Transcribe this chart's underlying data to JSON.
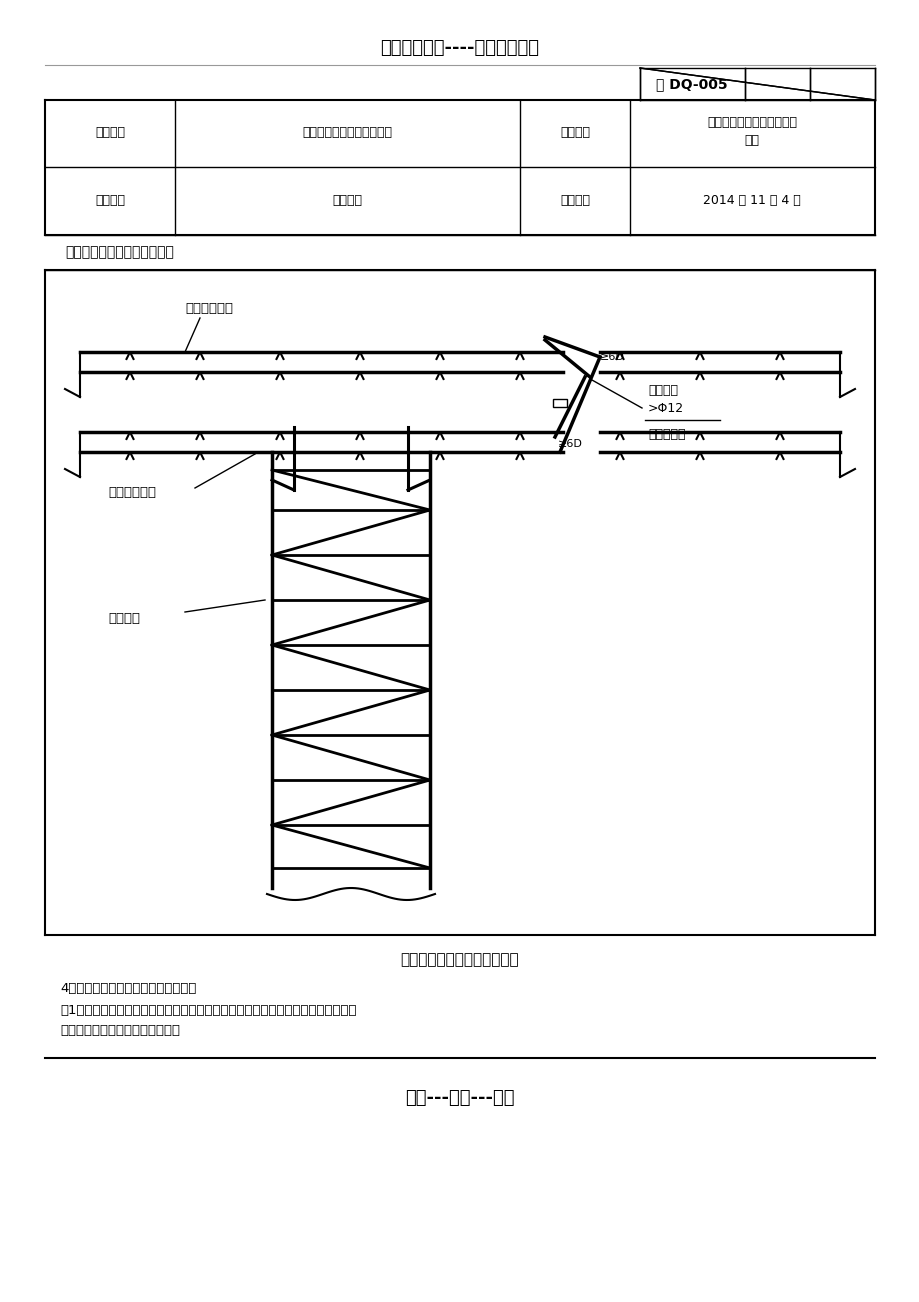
{
  "title_top": "精选优质文档----倾情为你奉上",
  "doc_number": "鲁 DQ-005",
  "table_rows": [
    [
      "工程名称",
      "潍坊市人民医院外科病房楼",
      "施工单位",
      "北京城建亚泰建设集团有限\n公司"
    ],
    [
      "交底部位",
      "基础筏板",
      "交底时间",
      "2014 年 11 月 4 日"
    ]
  ],
  "jiaodi_text": "交底提要：基础接地装置安装",
  "diagram_caption": "桩基内钢筋做接地装置做法图",
  "body_text_1": "4、利用钢筋混凝土板式基础做接地体",
  "body_text_2": "（1）有防水层板式基础的钢筋做接地装置时，不得破坏防水层，在基础钢筋满足接",
  "body_text_3": "地要求时，可不做外引人工接地。",
  "footer_text": "专心---专注---专业",
  "bg_color": "#ffffff",
  "line_color": "#000000",
  "text_color": "#000000"
}
